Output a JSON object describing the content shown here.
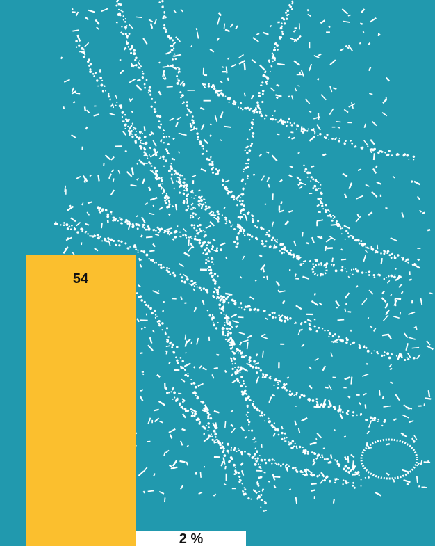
{
  "colors": {
    "background": "#2199ae",
    "map_dots": "#ffffff",
    "bar_primary": "#fbbf2e",
    "bar_secondary": "#ffffff",
    "label_text": "#111111"
  },
  "chart_data": {
    "type": "bar",
    "categories": [
      "",
      ""
    ],
    "values": [
      54,
      2
    ],
    "labels": [
      "54",
      "2 %"
    ],
    "ylim": [
      0,
      54
    ],
    "title": "",
    "xlabel": "",
    "ylabel": "",
    "grid": false,
    "legend": "none"
  }
}
